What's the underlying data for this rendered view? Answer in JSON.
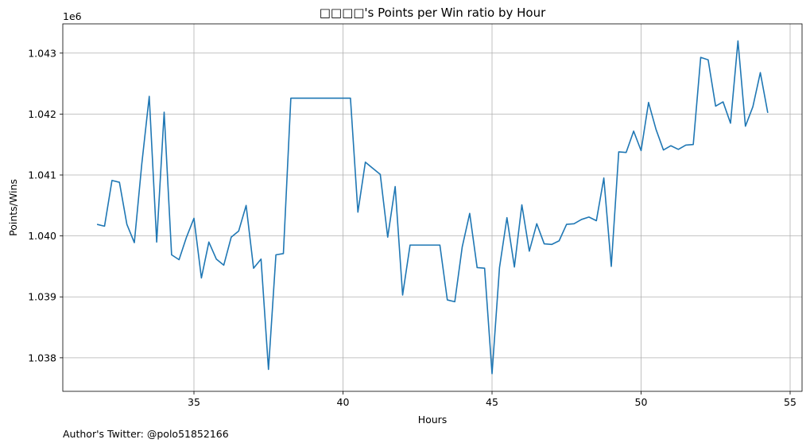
{
  "chart_data": {
    "type": "line",
    "title": "□□□□'s Points per Win ratio by Hour",
    "xlabel": "Hours",
    "ylabel": "Points/Wins",
    "y_offset_label": "1e6",
    "xlim": [
      30.6,
      55.4
    ],
    "ylim": [
      1037450,
      1043480
    ],
    "x_ticks": [
      35,
      40,
      45,
      50,
      55
    ],
    "x_tick_labels": [
      "35",
      "40",
      "45",
      "50",
      "55"
    ],
    "y_ticks": [
      1038000,
      1039000,
      1040000,
      1041000,
      1042000,
      1043000
    ],
    "y_tick_labels": [
      "1.038",
      "1.039",
      "1.040",
      "1.041",
      "1.042",
      "1.043"
    ],
    "grid": true,
    "series": [
      {
        "color": "#1f77b4",
        "x": [
          31.75,
          32.0,
          32.25,
          32.5,
          32.75,
          33.0,
          33.25,
          33.5,
          33.75,
          34.0,
          34.25,
          34.5,
          34.75,
          35.0,
          35.25,
          35.5,
          35.75,
          36.0,
          36.25,
          36.5,
          36.75,
          37.0,
          37.25,
          37.5,
          37.75,
          38.0,
          38.25,
          38.5,
          38.75,
          39.0,
          39.25,
          39.5,
          39.75,
          40.0,
          40.25,
          40.5,
          40.75,
          41.0,
          41.25,
          41.5,
          41.75,
          42.0,
          42.25,
          42.5,
          42.75,
          43.0,
          43.25,
          43.5,
          43.75,
          44.0,
          44.25,
          44.5,
          44.75,
          45.0,
          45.25,
          45.5,
          45.75,
          46.0,
          46.25,
          46.5,
          46.75,
          47.0,
          47.25,
          47.5,
          47.75,
          48.0,
          48.25,
          48.5,
          48.75,
          49.0,
          49.25,
          49.5,
          49.75,
          50.0,
          50.25,
          50.5,
          50.75,
          51.0,
          51.25,
          51.5,
          51.75,
          52.0,
          52.25,
          52.5,
          52.75,
          53.0,
          53.25,
          53.5,
          53.75,
          54.0,
          54.25
        ],
        "y": [
          1040190,
          1040160,
          1040910,
          1040880,
          1040190,
          1039890,
          1041180,
          1042290,
          1039900,
          1042030,
          1039690,
          1039610,
          1039980,
          1040290,
          1039310,
          1039900,
          1039620,
          1039520,
          1039980,
          1040080,
          1040500,
          1039470,
          1039620,
          1037810,
          1039690,
          1039710,
          1042260,
          1042260,
          1042260,
          1042260,
          1042260,
          1042260,
          1042260,
          1042260,
          1042260,
          1040390,
          1041210,
          1041110,
          1041010,
          1039980,
          1040810,
          1039030,
          1039850,
          1039850,
          1039850,
          1039850,
          1039850,
          1038950,
          1038920,
          1039820,
          1040370,
          1039480,
          1039470,
          1037740,
          1039480,
          1040300,
          1039490,
          1040510,
          1039750,
          1040200,
          1039870,
          1039860,
          1039920,
          1040190,
          1040200,
          1040270,
          1040310,
          1040250,
          1040950,
          1039500,
          1041380,
          1041370,
          1041720,
          1041400,
          1042190,
          1041750,
          1041410,
          1041480,
          1041420,
          1041490,
          1041500,
          1042930,
          1042890,
          1042130,
          1042200,
          1041850,
          1043200,
          1041800,
          1042120,
          1042680,
          1042020
        ]
      }
    ]
  },
  "footer": {
    "author_text": "Author's Twitter: @polo51852166"
  }
}
